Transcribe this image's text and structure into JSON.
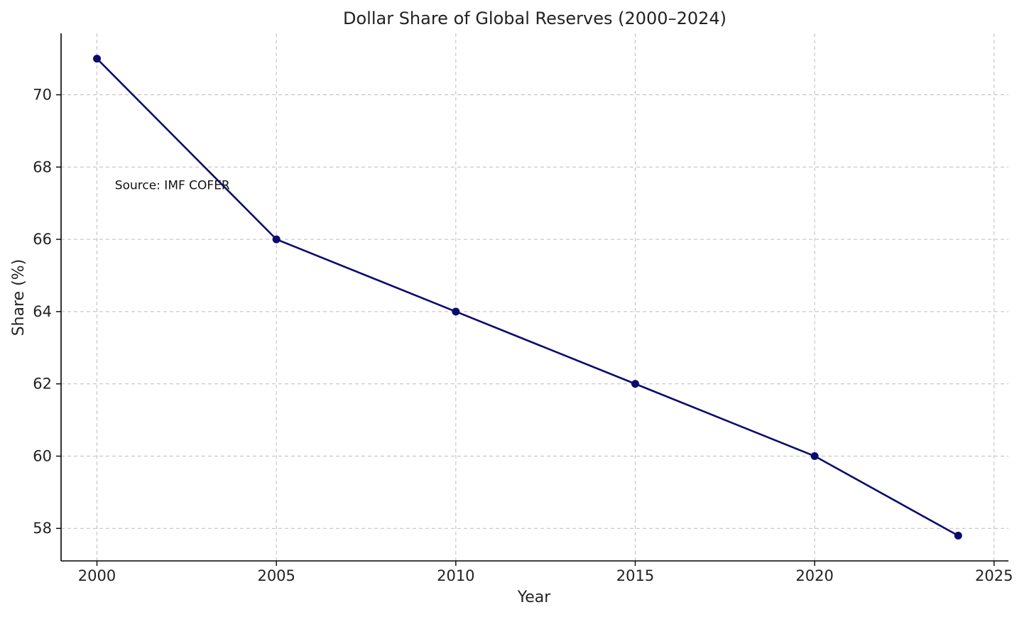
{
  "chart_data": {
    "type": "line",
    "title": "Dollar Share of Global Reserves (2000–2024)",
    "xlabel": "Year",
    "ylabel": "Share (%)",
    "xlim": [
      1999,
      2025.4
    ],
    "ylim": [
      57.1,
      71.7
    ],
    "xticks": [
      2000,
      2005,
      2010,
      2015,
      2020,
      2025
    ],
    "yticks": [
      58,
      60,
      62,
      64,
      66,
      68,
      70
    ],
    "grid": true,
    "line_color": "#0b0b6e",
    "annotation": {
      "text": "Source: IMF COFER",
      "x": 2000.5,
      "y": 67.5
    },
    "series": [
      {
        "x": [
          2000,
          2005,
          2010,
          2015,
          2020,
          2024
        ],
        "values": [
          71,
          66,
          64,
          62,
          60,
          57.8
        ]
      }
    ]
  }
}
